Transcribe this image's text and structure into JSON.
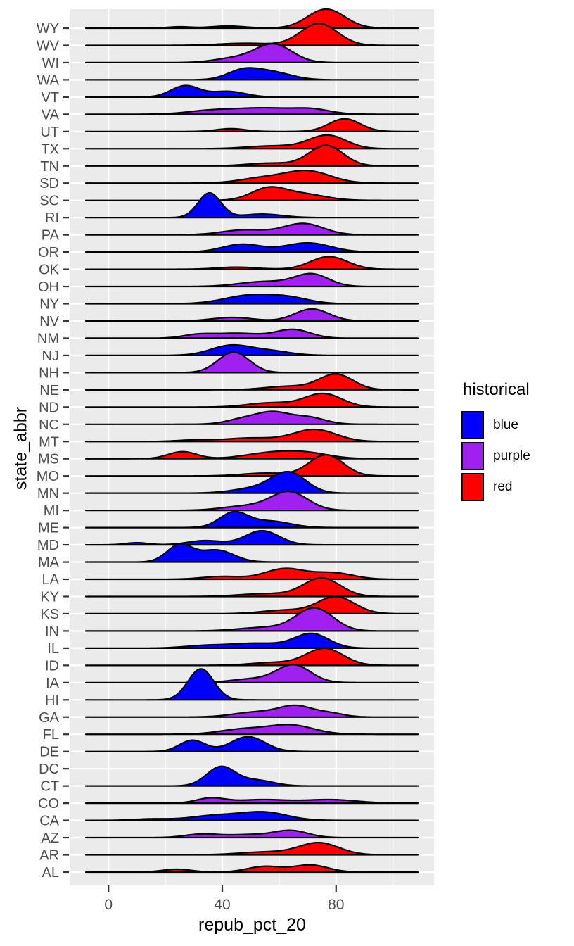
{
  "chart_data": {
    "type": "ridgeline",
    "xlabel": "repub_pct_20",
    "ylabel": "state_abbr",
    "x_ticks": [
      0,
      40,
      80
    ],
    "x_minor_gridlines": [
      20,
      60,
      100
    ],
    "x_range_panel": [
      -13.4,
      114.5
    ],
    "grid": true,
    "panel_background": "#EBEBEB",
    "gridline_color": "#FFFFFF",
    "axis_text_color": "#4D4D4D",
    "outline_color": "#000000",
    "colors": {
      "blue": "#0000FF",
      "purple": "#A020F0",
      "red": "#FF0000"
    },
    "legend": {
      "title": "historical",
      "position": "right",
      "entries": [
        {
          "label": "blue",
          "color": "#0000FF"
        },
        {
          "label": "purple",
          "color": "#A020F0"
        },
        {
          "label": "red",
          "color": "#FF0000"
        }
      ]
    },
    "note": "peaks are gaussian mixture components [mean_pct, sd_pct, height_px] estimated from the rendered densities; states ordered top-to-bottom as drawn; DC row has a label but no density curve",
    "states": [
      {
        "abbr": "WY",
        "class": "red",
        "peaks": [
          [
            76.5,
            6.5,
            27
          ],
          [
            42,
            6,
            3
          ],
          [
            25,
            4,
            2
          ]
        ]
      },
      {
        "abbr": "WV",
        "class": "red",
        "peaks": [
          [
            74,
            6.5,
            31
          ],
          [
            48,
            9,
            3
          ]
        ]
      },
      {
        "abbr": "WI",
        "class": "purple",
        "peaks": [
          [
            58,
            6.5,
            26
          ],
          [
            44,
            7,
            6
          ]
        ]
      },
      {
        "abbr": "WA",
        "class": "blue",
        "peaks": [
          [
            47,
            5.5,
            12
          ],
          [
            57,
            7,
            11
          ]
        ]
      },
      {
        "abbr": "VT",
        "class": "blue",
        "peaks": [
          [
            27,
            5,
            16
          ],
          [
            42,
            6,
            8
          ]
        ]
      },
      {
        "abbr": "VA",
        "class": "purple",
        "peaks": [
          [
            55,
            12,
            9
          ],
          [
            35,
            8,
            4
          ],
          [
            72,
            6,
            5
          ]
        ]
      },
      {
        "abbr": "UT",
        "class": "red",
        "peaks": [
          [
            83,
            5.5,
            18
          ],
          [
            43,
            5,
            4
          ]
        ]
      },
      {
        "abbr": "TX",
        "class": "red",
        "peaks": [
          [
            77,
            6.5,
            19
          ],
          [
            58,
            9,
            4
          ]
        ]
      },
      {
        "abbr": "TN",
        "class": "red",
        "peaks": [
          [
            76.5,
            6,
            29
          ],
          [
            57,
            8,
            4
          ]
        ]
      },
      {
        "abbr": "SD",
        "class": "red",
        "peaks": [
          [
            70,
            8,
            17
          ],
          [
            54,
            8,
            7
          ]
        ]
      },
      {
        "abbr": "SC",
        "class": "red",
        "peaks": [
          [
            56,
            6,
            16
          ],
          [
            68,
            8,
            9
          ]
        ]
      },
      {
        "abbr": "RI",
        "class": "blue",
        "peaks": [
          [
            35.5,
            4,
            35
          ],
          [
            54,
            7,
            5
          ]
        ]
      },
      {
        "abbr": "PA",
        "class": "purple",
        "peaks": [
          [
            68.5,
            7,
            16
          ],
          [
            48,
            8,
            7
          ]
        ]
      },
      {
        "abbr": "OR",
        "class": "blue",
        "peaks": [
          [
            70,
            8,
            13
          ],
          [
            47,
            7,
            11
          ]
        ]
      },
      {
        "abbr": "OK",
        "class": "red",
        "peaks": [
          [
            77.5,
            6.5,
            18
          ],
          [
            45,
            7,
            3
          ]
        ]
      },
      {
        "abbr": "OH",
        "class": "purple",
        "peaks": [
          [
            71.5,
            6,
            17
          ],
          [
            55,
            9,
            7
          ]
        ]
      },
      {
        "abbr": "NY",
        "class": "blue",
        "peaks": [
          [
            50,
            9,
            12
          ],
          [
            64,
            7,
            7
          ]
        ]
      },
      {
        "abbr": "NV",
        "class": "purple",
        "peaks": [
          [
            71.5,
            6,
            17
          ],
          [
            43.5,
            7,
            5
          ]
        ]
      },
      {
        "abbr": "NM",
        "class": "purple",
        "peaks": [
          [
            65,
            6,
            12
          ],
          [
            45,
            9,
            7
          ],
          [
            31,
            5,
            4
          ]
        ]
      },
      {
        "abbr": "NJ",
        "class": "blue",
        "peaks": [
          [
            43,
            7,
            14
          ],
          [
            57,
            7,
            6
          ]
        ]
      },
      {
        "abbr": "NH",
        "class": "purple",
        "peaks": [
          [
            44,
            5.5,
            29
          ]
        ]
      },
      {
        "abbr": "NE",
        "class": "red",
        "peaks": [
          [
            80,
            6,
            22
          ],
          [
            63,
            8,
            5
          ]
        ]
      },
      {
        "abbr": "ND",
        "class": "red",
        "peaks": [
          [
            75.5,
            6.5,
            19
          ],
          [
            57,
            8,
            6
          ]
        ]
      },
      {
        "abbr": "NC",
        "class": "purple",
        "peaks": [
          [
            58,
            5.5,
            15
          ],
          [
            70,
            6,
            10
          ],
          [
            48,
            6,
            8
          ]
        ]
      },
      {
        "abbr": "MT",
        "class": "red",
        "peaks": [
          [
            72.5,
            7.5,
            17
          ],
          [
            50,
            9,
            5
          ],
          [
            30,
            6,
            2
          ]
        ]
      },
      {
        "abbr": "MS",
        "class": "red",
        "peaks": [
          [
            26,
            5,
            10
          ],
          [
            57,
            9,
            8
          ],
          [
            70,
            8,
            7
          ]
        ]
      },
      {
        "abbr": "MO",
        "class": "red",
        "peaks": [
          [
            76.5,
            6,
            30
          ],
          [
            55,
            8,
            4
          ]
        ]
      },
      {
        "abbr": "MN",
        "class": "blue",
        "peaks": [
          [
            63.5,
            6,
            28
          ],
          [
            52,
            8,
            7
          ]
        ]
      },
      {
        "abbr": "MI",
        "class": "purple",
        "peaks": [
          [
            63.5,
            6.5,
            26
          ],
          [
            48,
            8,
            6
          ]
        ]
      },
      {
        "abbr": "ME",
        "class": "blue",
        "peaks": [
          [
            44,
            5,
            21
          ],
          [
            57,
            7,
            9
          ]
        ]
      },
      {
        "abbr": "MD",
        "class": "blue",
        "peaks": [
          [
            54,
            6,
            20
          ],
          [
            34,
            6,
            6
          ],
          [
            10,
            4,
            3
          ]
        ]
      },
      {
        "abbr": "MA",
        "class": "blue",
        "peaks": [
          [
            25,
            4.5,
            24
          ],
          [
            38,
            6,
            17
          ]
        ]
      },
      {
        "abbr": "LA",
        "class": "red",
        "peaks": [
          [
            62,
            7,
            15
          ],
          [
            79,
            7,
            9
          ],
          [
            40,
            7,
            4
          ]
        ]
      },
      {
        "abbr": "KY",
        "class": "red",
        "peaks": [
          [
            75,
            6.5,
            26
          ],
          [
            55,
            9,
            4
          ]
        ]
      },
      {
        "abbr": "KS",
        "class": "red",
        "peaks": [
          [
            80,
            6.5,
            24
          ],
          [
            62,
            8,
            5
          ]
        ]
      },
      {
        "abbr": "IN",
        "class": "purple",
        "peaks": [
          [
            72.5,
            6.5,
            32
          ],
          [
            55,
            9,
            5
          ]
        ]
      },
      {
        "abbr": "IL",
        "class": "blue",
        "peaks": [
          [
            71.5,
            6,
            20
          ],
          [
            52,
            10,
            7
          ],
          [
            33,
            7,
            3
          ]
        ]
      },
      {
        "abbr": "ID",
        "class": "red",
        "peaks": [
          [
            76,
            6.5,
            24
          ],
          [
            58,
            8,
            4
          ]
        ]
      },
      {
        "abbr": "IA",
        "class": "purple",
        "peaks": [
          [
            65,
            6,
            25
          ],
          [
            50,
            7,
            5
          ]
        ]
      },
      {
        "abbr": "HI",
        "class": "blue",
        "peaks": [
          [
            32.5,
            4.5,
            44
          ]
        ]
      },
      {
        "abbr": "GA",
        "class": "purple",
        "peaks": [
          [
            66,
            6,
            15
          ],
          [
            52,
            8,
            7
          ],
          [
            78,
            5,
            5
          ]
        ]
      },
      {
        "abbr": "FL",
        "class": "purple",
        "peaks": [
          [
            64,
            8,
            13
          ],
          [
            47,
            8,
            7
          ]
        ]
      },
      {
        "abbr": "DE",
        "class": "blue",
        "peaks": [
          [
            49,
            6,
            21
          ],
          [
            29.5,
            4.5,
            16
          ]
        ]
      },
      {
        "abbr": "DC",
        "class": "none",
        "peaks": []
      },
      {
        "abbr": "CT",
        "class": "blue",
        "peaks": [
          [
            39.5,
            5,
            27
          ],
          [
            52,
            6,
            8
          ]
        ]
      },
      {
        "abbr": "CO",
        "class": "purple",
        "peaks": [
          [
            36,
            5,
            7
          ],
          [
            54,
            9,
            5
          ],
          [
            78,
            9,
            5
          ]
        ]
      },
      {
        "abbr": "CA",
        "class": "blue",
        "peaks": [
          [
            55,
            8,
            11
          ],
          [
            38,
            9,
            7
          ],
          [
            15,
            6,
            2
          ]
        ]
      },
      {
        "abbr": "AZ",
        "class": "purple",
        "peaks": [
          [
            64,
            6,
            10
          ],
          [
            33,
            6,
            5
          ],
          [
            49,
            7,
            4
          ]
        ]
      },
      {
        "abbr": "AR",
        "class": "red",
        "peaks": [
          [
            74,
            7,
            17
          ],
          [
            55,
            9,
            4
          ]
        ]
      },
      {
        "abbr": "AL",
        "class": "red",
        "peaks": [
          [
            71,
            6,
            10
          ],
          [
            55,
            6,
            8
          ],
          [
            24,
            5,
            4
          ]
        ]
      }
    ]
  }
}
